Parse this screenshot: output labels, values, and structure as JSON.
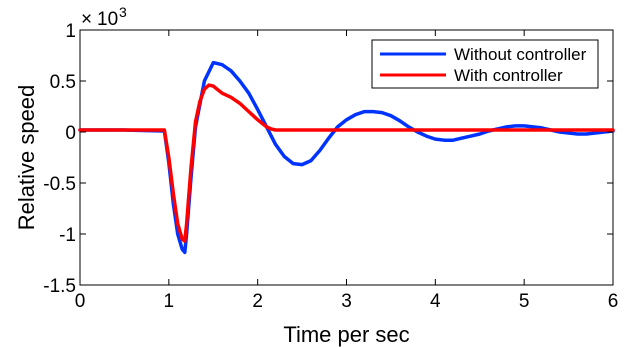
{
  "chart_data": {
    "type": "line",
    "title": "",
    "xlabel": "Time per sec",
    "ylabel": "Relative speed",
    "y_multiplier": {
      "times": "×",
      "base": "10",
      "exponent": "3"
    },
    "xlim": [
      0,
      6
    ],
    "ylim": [
      -1.5,
      1
    ],
    "x_ticks": [
      0,
      1,
      2,
      3,
      4,
      5,
      6
    ],
    "y_ticks": [
      -1.5,
      -1,
      -0.5,
      0,
      0.5,
      1
    ],
    "x_tick_labels": [
      "0",
      "1",
      "2",
      "3",
      "4",
      "5",
      "6"
    ],
    "y_tick_labels": [
      "-1.5",
      "-1",
      "-0.5",
      "0",
      "0.5",
      "1"
    ],
    "grid": false,
    "legend_position": "top-right",
    "series": [
      {
        "name": "Without controller",
        "color": "#0033ff",
        "x": [
          0,
          0.5,
          0.95,
          1.0,
          1.05,
          1.1,
          1.15,
          1.18,
          1.2,
          1.25,
          1.3,
          1.4,
          1.5,
          1.6,
          1.7,
          1.8,
          1.9,
          2.0,
          2.1,
          2.2,
          2.3,
          2.4,
          2.5,
          2.6,
          2.7,
          2.8,
          2.9,
          3.0,
          3.1,
          3.2,
          3.3,
          3.4,
          3.5,
          3.6,
          3.7,
          3.8,
          3.9,
          4.0,
          4.1,
          4.2,
          4.3,
          4.4,
          4.5,
          4.6,
          4.7,
          4.8,
          4.9,
          5.0,
          5.1,
          5.2,
          5.3,
          5.4,
          5.5,
          5.6,
          5.7,
          5.8,
          5.9,
          6.0
        ],
        "y": [
          0.02,
          0.02,
          0.01,
          -0.3,
          -0.7,
          -1.0,
          -1.15,
          -1.18,
          -1.0,
          -0.45,
          0.05,
          0.5,
          0.68,
          0.66,
          0.6,
          0.5,
          0.38,
          0.22,
          0.05,
          -0.12,
          -0.24,
          -0.31,
          -0.32,
          -0.28,
          -0.18,
          -0.06,
          0.05,
          0.12,
          0.17,
          0.2,
          0.2,
          0.19,
          0.16,
          0.11,
          0.05,
          0.0,
          -0.04,
          -0.07,
          -0.08,
          -0.08,
          -0.06,
          -0.04,
          -0.02,
          0.01,
          0.03,
          0.05,
          0.06,
          0.06,
          0.05,
          0.04,
          0.02,
          0.0,
          -0.01,
          -0.02,
          -0.02,
          -0.01,
          0.0,
          0.01
        ]
      },
      {
        "name": "With controller",
        "color": "#ff0000",
        "x": [
          0,
          0.5,
          0.95,
          1.0,
          1.05,
          1.1,
          1.15,
          1.18,
          1.2,
          1.25,
          1.3,
          1.35,
          1.4,
          1.45,
          1.5,
          1.6,
          1.7,
          1.8,
          1.9,
          2.0,
          2.1,
          2.15,
          2.2,
          2.5,
          3.0,
          3.5,
          4.0,
          4.5,
          5.0,
          5.5,
          6.0
        ],
        "y": [
          0.02,
          0.02,
          0.02,
          -0.25,
          -0.6,
          -0.9,
          -1.05,
          -1.07,
          -0.9,
          -0.35,
          0.1,
          0.3,
          0.42,
          0.46,
          0.45,
          0.38,
          0.34,
          0.28,
          0.2,
          0.12,
          0.05,
          0.03,
          0.02,
          0.02,
          0.02,
          0.02,
          0.02,
          0.02,
          0.02,
          0.02,
          0.02
        ]
      }
    ]
  }
}
